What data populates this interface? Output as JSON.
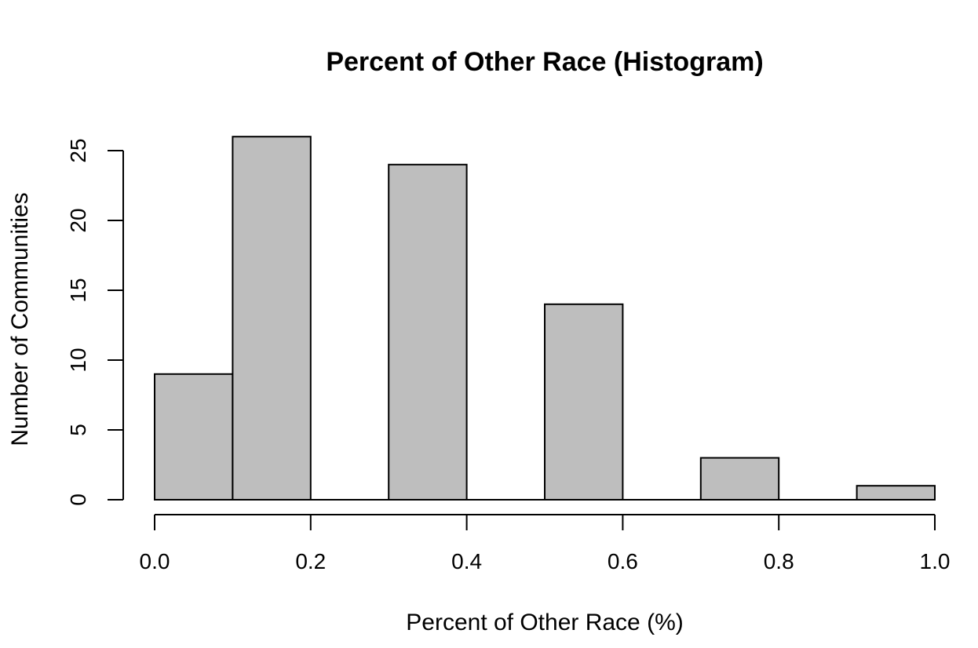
{
  "chart_data": {
    "type": "bar",
    "title": "Percent of Other Race (Histogram)",
    "xlabel": "Percent of Other Race (%)",
    "ylabel": "Number of Communities",
    "bins": [
      {
        "from": 0.0,
        "to": 0.1,
        "count": 9
      },
      {
        "from": 0.1,
        "to": 0.2,
        "count": 26
      },
      {
        "from": 0.2,
        "to": 0.3,
        "count": 0
      },
      {
        "from": 0.3,
        "to": 0.4,
        "count": 24
      },
      {
        "from": 0.4,
        "to": 0.5,
        "count": 0
      },
      {
        "from": 0.5,
        "to": 0.6,
        "count": 14
      },
      {
        "from": 0.6,
        "to": 0.7,
        "count": 0
      },
      {
        "from": 0.7,
        "to": 0.8,
        "count": 3
      },
      {
        "from": 0.8,
        "to": 0.9,
        "count": 0
      },
      {
        "from": 0.9,
        "to": 1.0,
        "count": 1
      }
    ],
    "xlim": [
      0.0,
      1.0
    ],
    "ylim": [
      0,
      26
    ],
    "x_ticks": [
      "0.0",
      "0.2",
      "0.4",
      "0.6",
      "0.8",
      "1.0"
    ],
    "y_ticks": [
      "0",
      "5",
      "10",
      "15",
      "20",
      "25"
    ],
    "bar_color": "#bebebe",
    "grid": false,
    "legend": "none"
  }
}
